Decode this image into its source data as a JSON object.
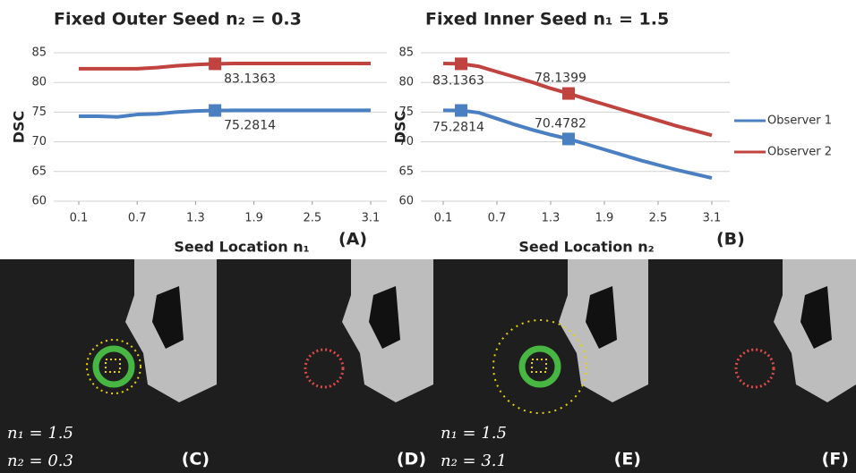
{
  "chart_data": [
    {
      "type": "line",
      "title": "Fixed Outer Seed n₂ = 0.3",
      "x_label": "Seed Location n₁",
      "y_label": "DSC",
      "panel_label": "(A)",
      "x": [
        0.1,
        0.3,
        0.5,
        0.7,
        0.9,
        1.1,
        1.3,
        1.5,
        1.7,
        1.9,
        2.1,
        2.3,
        2.5,
        2.7,
        2.9,
        3.1
      ],
      "xlim": [
        0.1,
        3.1
      ],
      "xticks": [
        0.1,
        0.7,
        1.3,
        1.9,
        2.5,
        3.1
      ],
      "ylim": [
        60,
        85
      ],
      "yticks": [
        60,
        65,
        70,
        75,
        80,
        85
      ],
      "grid": true,
      "series": [
        {
          "name": "Observer 1",
          "color": "#4a7fc1",
          "labeled_points": [
            7
          ],
          "values": [
            74.3,
            74.3,
            74.2,
            74.6,
            74.7,
            75.0,
            75.2,
            75.2814,
            75.3,
            75.3,
            75.3,
            75.3,
            75.3,
            75.3,
            75.3,
            75.3
          ]
        },
        {
          "name": "Observer 2",
          "color": "#c0433f",
          "labeled_points": [
            7
          ],
          "values": [
            82.3,
            82.3,
            82.3,
            82.3,
            82.5,
            82.8,
            83.0,
            83.1363,
            83.2,
            83.2,
            83.2,
            83.2,
            83.2,
            83.2,
            83.2,
            83.2
          ]
        }
      ]
    },
    {
      "type": "line",
      "title": "Fixed Inner Seed n₁ = 1.5",
      "x_label": "Seed Location n₂",
      "y_label": "DSC",
      "panel_label": "(B)",
      "legend": "right",
      "x": [
        0.1,
        0.3,
        0.5,
        0.7,
        0.9,
        1.1,
        1.3,
        1.5,
        1.7,
        1.9,
        2.1,
        2.3,
        2.5,
        2.7,
        2.9,
        3.1
      ],
      "xlim": [
        0.1,
        3.1
      ],
      "xticks": [
        0.1,
        0.7,
        1.3,
        1.9,
        2.5,
        3.1
      ],
      "ylim": [
        60,
        85
      ],
      "yticks": [
        60,
        65,
        70,
        75,
        80,
        85
      ],
      "grid": true,
      "series": [
        {
          "name": "Observer 1",
          "color": "#4a7fc1",
          "labeled_points": [
            1,
            7
          ],
          "values": [
            75.3,
            75.2814,
            74.9,
            73.9,
            72.9,
            72.0,
            71.2,
            70.4782,
            69.6,
            68.7,
            67.8,
            66.9,
            66.1,
            65.3,
            64.6,
            63.9
          ]
        },
        {
          "name": "Observer 2",
          "color": "#c0433f",
          "labeled_points": [
            1,
            7
          ],
          "values": [
            83.2,
            83.1363,
            82.7,
            81.8,
            80.9,
            80.0,
            79.0,
            78.1399,
            77.2,
            76.3,
            75.4,
            74.5,
            73.6,
            72.7,
            71.9,
            71.1
          ]
        }
      ]
    }
  ],
  "panels": [
    {
      "label": "(C)",
      "annotations": [
        "n₁ = 1.5",
        "n₂ = 0.3"
      ]
    },
    {
      "label": "(D)",
      "annotations": []
    },
    {
      "label": "(E)",
      "annotations": [
        "n₁ = 1.5",
        "n₂ = 3.1"
      ]
    },
    {
      "label": "(F)",
      "annotations": []
    }
  ]
}
